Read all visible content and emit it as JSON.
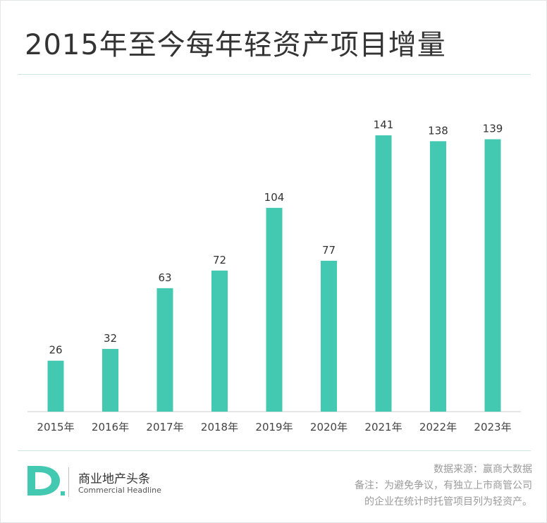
{
  "title": "2015年至今每年轻资产项目增量",
  "colors": {
    "bar": "#43c9b1",
    "axis": "#cccccc",
    "title": "#333333",
    "footnote": "#9a9a9a",
    "logo": "#43c9b1"
  },
  "chart_data": {
    "type": "bar",
    "title": "",
    "xlabel": "",
    "ylabel": "",
    "categories": [
      "2015年",
      "2016年",
      "2017年",
      "2018年",
      "2019年",
      "2020年",
      "2021年",
      "2022年",
      "2023年"
    ],
    "values": [
      26,
      32,
      63,
      72,
      104,
      77,
      141,
      138,
      139
    ],
    "ylim": [
      0,
      150
    ],
    "grid": false,
    "data_labels": true
  },
  "footer": {
    "logo_icon": "d-logo-icon",
    "brand_name": "商业地产头条",
    "brand_en": "Commercial Headline",
    "source": "数据来源：赢商大数据",
    "note_line1": "备注：为避免争议，有独立上市商管公司",
    "note_line2": "的企业在统计时托管项目列为轻资产。"
  }
}
